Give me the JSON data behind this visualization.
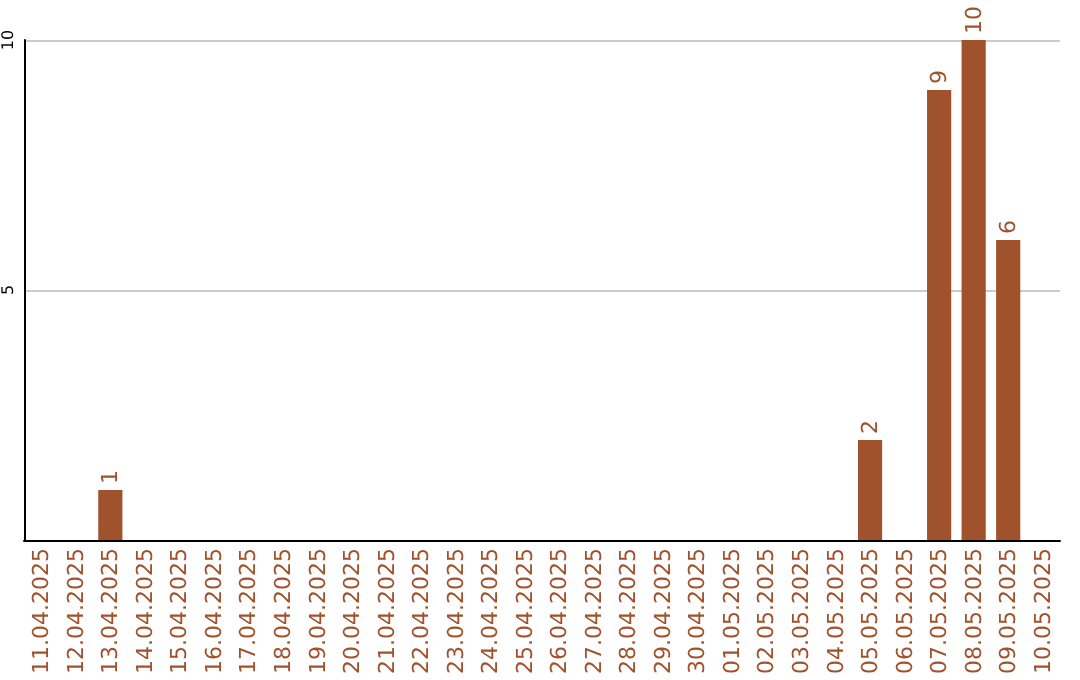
{
  "chart_data": {
    "type": "bar",
    "categories": [
      "11.04.2025",
      "12.04.2025",
      "13.04.2025",
      "14.04.2025",
      "15.04.2025",
      "16.04.2025",
      "17.04.2025",
      "18.04.2025",
      "19.04.2025",
      "20.04.2025",
      "21.04.2025",
      "22.04.2025",
      "23.04.2025",
      "24.04.2025",
      "25.04.2025",
      "26.04.2025",
      "27.04.2025",
      "28.04.2025",
      "29.04.2025",
      "30.04.2025",
      "01.05.2025",
      "02.05.2025",
      "03.05.2025",
      "04.05.2025",
      "05.05.2025",
      "06.05.2025",
      "07.05.2025",
      "08.05.2025",
      "09.05.2025",
      "10.05.2025"
    ],
    "values": [
      0,
      0,
      1,
      0,
      0,
      0,
      0,
      0,
      0,
      0,
      0,
      0,
      0,
      0,
      0,
      0,
      0,
      0,
      0,
      0,
      0,
      0,
      0,
      0,
      2,
      0,
      9,
      10,
      6,
      0
    ],
    "value_labels": [
      null,
      null,
      "1",
      null,
      null,
      null,
      null,
      null,
      null,
      null,
      null,
      null,
      null,
      null,
      null,
      null,
      null,
      null,
      null,
      null,
      null,
      null,
      null,
      null,
      "2",
      null,
      "9",
      "10",
      "6",
      null
    ],
    "color": "#a0522d",
    "ylim": [
      0,
      10
    ],
    "yticks": [
      5,
      10
    ],
    "grid": "y"
  }
}
